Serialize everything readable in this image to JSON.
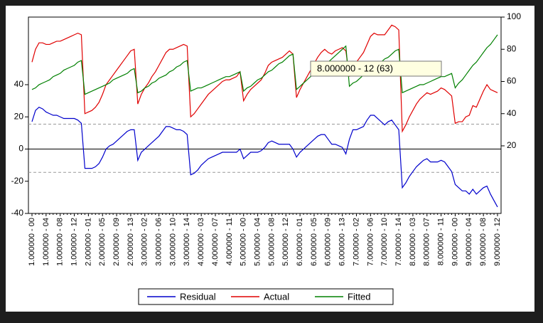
{
  "chart_data": {
    "type": "line",
    "categories": [
      "1.000000 - 00",
      null,
      null,
      null,
      "1.000000 - 04",
      null,
      null,
      null,
      "1.000000 - 08",
      null,
      null,
      null,
      "1.000000 - 12",
      null,
      null,
      null,
      "2.000000 - 01",
      null,
      null,
      null,
      "2.000000 - 05",
      null,
      null,
      null,
      "2.000000 - 09",
      null,
      null,
      null,
      "2.000000 - 13",
      null,
      null,
      null,
      "3.000000 - 02",
      null,
      null,
      null,
      "3.000000 - 06",
      null,
      null,
      null,
      "3.000000 - 10",
      null,
      null,
      null,
      "3.000000 - 14",
      null,
      null,
      null,
      "4.000000 - 03",
      null,
      null,
      null,
      "4.000000 - 07",
      null,
      null,
      null,
      "4.000000 - 11",
      null,
      null,
      null,
      "5.000000 - 00",
      null,
      null,
      null,
      "5.000000 - 04",
      null,
      null,
      null,
      "5.000000 - 08",
      null,
      null,
      null,
      "5.000000 - 12",
      null,
      null,
      null,
      "6.000000 - 01",
      null,
      null,
      null,
      "6.000000 - 05",
      null,
      null,
      null,
      "6.000000 - 09",
      null,
      null,
      null,
      "6.000000 - 13",
      null,
      null,
      null,
      "7.000000 - 02",
      null,
      null,
      null,
      "7.000000 - 06",
      null,
      null,
      null,
      "7.000000 - 10",
      null,
      null,
      null,
      "7.000000 - 14",
      null,
      null,
      null,
      "8.000000 - 03",
      null,
      null,
      null,
      "8.000000 - 07",
      null,
      null,
      null,
      "8.000000 - 11",
      null,
      null,
      null,
      "9.000000 - 00",
      null,
      null,
      null,
      "9.000000 - 04",
      null,
      null,
      null,
      "9.000000 - 08",
      null,
      null,
      null,
      "9.000000 - 12"
    ],
    "series": [
      {
        "name": "Residual",
        "color": "#0000cc",
        "axis": "y",
        "values": [
          17,
          24,
          26,
          25,
          23,
          22,
          21,
          21,
          20,
          19,
          19,
          19,
          19,
          18,
          16,
          -12,
          -12,
          -12,
          -11,
          -9,
          -5,
          0,
          2,
          3,
          5,
          7,
          9,
          11,
          12,
          12,
          -7,
          -2,
          0,
          2,
          4,
          6,
          8,
          11,
          14,
          14,
          13,
          12,
          12,
          11,
          9,
          -16,
          -15,
          -13,
          -10,
          -8,
          -6,
          -5,
          -4,
          -3,
          -2,
          -2,
          -2,
          -2,
          -2,
          0,
          -6,
          -4,
          -2,
          -2,
          -2,
          -1,
          1,
          4,
          5,
          4,
          3,
          3,
          3,
          3,
          0,
          -5,
          -2,
          0,
          2,
          4,
          6,
          8,
          9,
          9,
          6,
          3,
          3,
          2,
          1,
          -3,
          6,
          12,
          12,
          13,
          14,
          18,
          21,
          21,
          19,
          17,
          15,
          17,
          18,
          15,
          12,
          -24,
          -21,
          -17,
          -14,
          -11,
          -9,
          -7,
          -6,
          -8,
          -8,
          -8,
          -7,
          -8,
          -11,
          -14,
          -22,
          -24,
          -26,
          -26,
          -28,
          -25,
          -28,
          -26,
          -24,
          -23,
          -28,
          -32,
          -36
        ]
      },
      {
        "name": "Actual",
        "color": "#e00000",
        "axis": "y2",
        "values": [
          72,
          80,
          84,
          84,
          83,
          83,
          84,
          85,
          85,
          86,
          87,
          88,
          89,
          90,
          89,
          40,
          41,
          42,
          44,
          47,
          52,
          58,
          61,
          64,
          67,
          70,
          73,
          76,
          79,
          80,
          46,
          52,
          56,
          59,
          63,
          66,
          70,
          74,
          78,
          80,
          80,
          81,
          82,
          83,
          82,
          38,
          40,
          43,
          46,
          49,
          52,
          54,
          56,
          58,
          60,
          61,
          61,
          62,
          63,
          66,
          48,
          52,
          55,
          57,
          59,
          61,
          65,
          70,
          72,
          73,
          74,
          75,
          77,
          79,
          77,
          50,
          55,
          59,
          63,
          67,
          71,
          75,
          78,
          80,
          78,
          77,
          79,
          80,
          81,
          79,
          63,
          71,
          72,
          75,
          78,
          83,
          88,
          90,
          89,
          89,
          89,
          92,
          95,
          94,
          92,
          29,
          33,
          38,
          42,
          46,
          49,
          51,
          53,
          52,
          53,
          54,
          56,
          55,
          53,
          51,
          34,
          35,
          35,
          38,
          39,
          45,
          44,
          49,
          54,
          58,
          55,
          54,
          53
        ]
      },
      {
        "name": "Fitted",
        "color": "#008000",
        "axis": "y2",
        "values": [
          55,
          56,
          58,
          59,
          60,
          61,
          63,
          64,
          65,
          67,
          68,
          69,
          70,
          72,
          73,
          52,
          53,
          54,
          55,
          56,
          57,
          58,
          59,
          61,
          62,
          63,
          64,
          65,
          67,
          68,
          53,
          54,
          56,
          57,
          59,
          60,
          62,
          63,
          64,
          66,
          67,
          69,
          70,
          72,
          73,
          54,
          55,
          56,
          56,
          57,
          58,
          59,
          60,
          61,
          62,
          63,
          63,
          64,
          65,
          66,
          54,
          56,
          57,
          59,
          61,
          62,
          64,
          66,
          67,
          69,
          71,
          72,
          74,
          76,
          77,
          55,
          57,
          59,
          61,
          63,
          65,
          67,
          69,
          71,
          72,
          74,
          76,
          78,
          80,
          82,
          57,
          59,
          60,
          62,
          64,
          65,
          67,
          69,
          70,
          72,
          74,
          75,
          77,
          79,
          80,
          53,
          54,
          55,
          56,
          57,
          58,
          58,
          59,
          60,
          61,
          62,
          63,
          63,
          64,
          65,
          56,
          59,
          61,
          64,
          67,
          70,
          72,
          75,
          78,
          81,
          83,
          86,
          89
        ]
      }
    ],
    "ylim": [
      -40,
      82
    ],
    "yticks": [
      -40,
      -20,
      0,
      20,
      40
    ],
    "y2lim": [
      -22,
      100
    ],
    "y2ticks": [
      20,
      40,
      60,
      80,
      100
    ],
    "bands": [
      -14.5,
      15.5
    ],
    "annotations": [
      "8.000000 - 12  (63)"
    ],
    "legend": "bottom"
  }
}
